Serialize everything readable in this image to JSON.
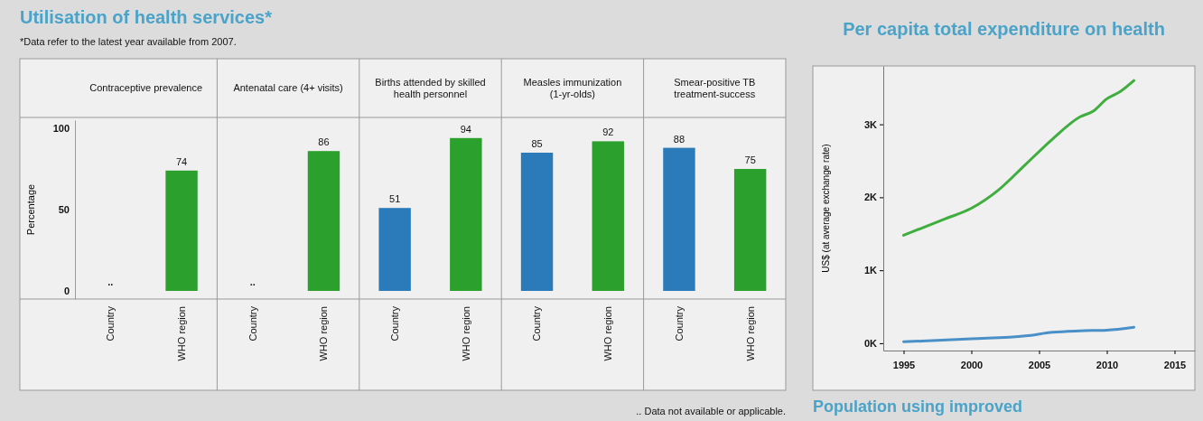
{
  "chart_data": [
    {
      "type": "bar",
      "title": "Utilisation of health services*",
      "subtitle": "*Data refer to the latest year available from 2007.",
      "ylabel": "Percentage",
      "categories": [
        "Contraceptive prevalence",
        "Antenatal care (4+ visits)",
        "Births attended by skilled health personnel",
        "Measles immunization (1-yr-olds)",
        "Smear-positive TB treatment-success"
      ],
      "series": [
        {
          "name": "Country",
          "color": "#2b7bba",
          "values": [
            null,
            null,
            51,
            85,
            88
          ],
          "value_labels": [
            "..",
            "..",
            "51",
            "85",
            "88"
          ]
        },
        {
          "name": "WHO region",
          "color": "#2ca02c",
          "values": [
            74,
            86,
            94,
            92,
            75
          ],
          "value_labels": [
            "74",
            "86",
            "94",
            "92",
            "75"
          ]
        }
      ],
      "ylim": [
        -5,
        105
      ],
      "yticks": [
        0,
        50,
        100
      ],
      "annotations": [
        ".. Data not available or applicable."
      ]
    },
    {
      "type": "line",
      "title": "Per capita total expenditure on health",
      "ylabel": "US$ (at average exchange rate)",
      "series": [
        {
          "color": "#3fae3f",
          "x": [
            1995,
            1998,
            2000,
            2002,
            2004,
            2006,
            2008,
            2009,
            2010,
            2011,
            2012
          ],
          "values": [
            1480,
            1700,
            1850,
            2100,
            2450,
            2800,
            3100,
            3180,
            3350,
            3450,
            3600
          ]
        },
        {
          "color": "#4a90c8",
          "x": [
            1995,
            2000,
            2004,
            2006,
            2008,
            2010,
            2012
          ],
          "values": [
            20,
            60,
            100,
            150,
            170,
            180,
            220
          ]
        }
      ],
      "xlim": [
        1993.5,
        2016.5
      ],
      "xticks": [
        1995,
        2000,
        2005,
        2010,
        2015
      ],
      "ylim": [
        -100,
        3800
      ],
      "yticks": [
        {
          "value": 0,
          "label": "0K"
        },
        {
          "value": 1000,
          "label": "1K"
        },
        {
          "value": 2000,
          "label": "2K"
        },
        {
          "value": 3000,
          "label": "3K"
        }
      ],
      "annotations": [
        "Population using improved"
      ]
    }
  ]
}
